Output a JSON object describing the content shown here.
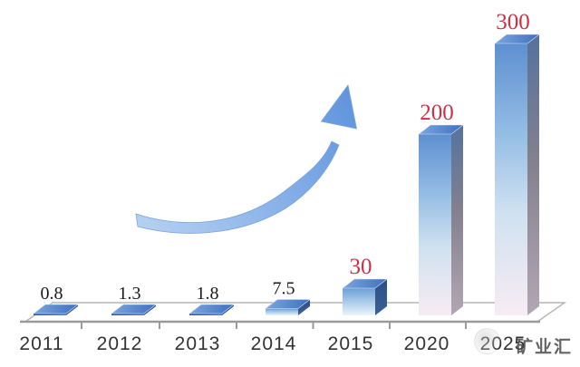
{
  "chart_data": {
    "type": "bar",
    "title": "",
    "xlabel": "",
    "ylabel": "",
    "categories": [
      "2011",
      "2012",
      "2013",
      "2014",
      "2015",
      "2020",
      "2025"
    ],
    "values": [
      0.8,
      1.3,
      1.8,
      7.5,
      30,
      200,
      300
    ],
    "data_labels": [
      "0.8",
      "1.3",
      "1.8",
      "7.5",
      "30",
      "200",
      "300"
    ],
    "label_colors": [
      "#1a1a1a",
      "#1a1a1a",
      "#1a1a1a",
      "#1a1a1a",
      "#cd3045",
      "#cd3045",
      "#cd3045"
    ],
    "ylim": [
      0,
      320
    ],
    "grid": false,
    "legend": "none",
    "style": "3d-bars-on-perspective-floor",
    "colors": {
      "bar_blue": "#3a6cc4",
      "bar_top_blue": "#4a7dc9",
      "bar_front_fade_bottom": "#f7ecf3",
      "highlight_label_red": "#cd3045",
      "axis_gray": "#9a9a9a"
    },
    "annotations": [
      "upward curved growth arrow from low 2011-2014 bars toward tall 2020/2025 bars"
    ]
  },
  "watermark": {
    "text": "矿业汇",
    "logo": "circular-badge-logo"
  }
}
